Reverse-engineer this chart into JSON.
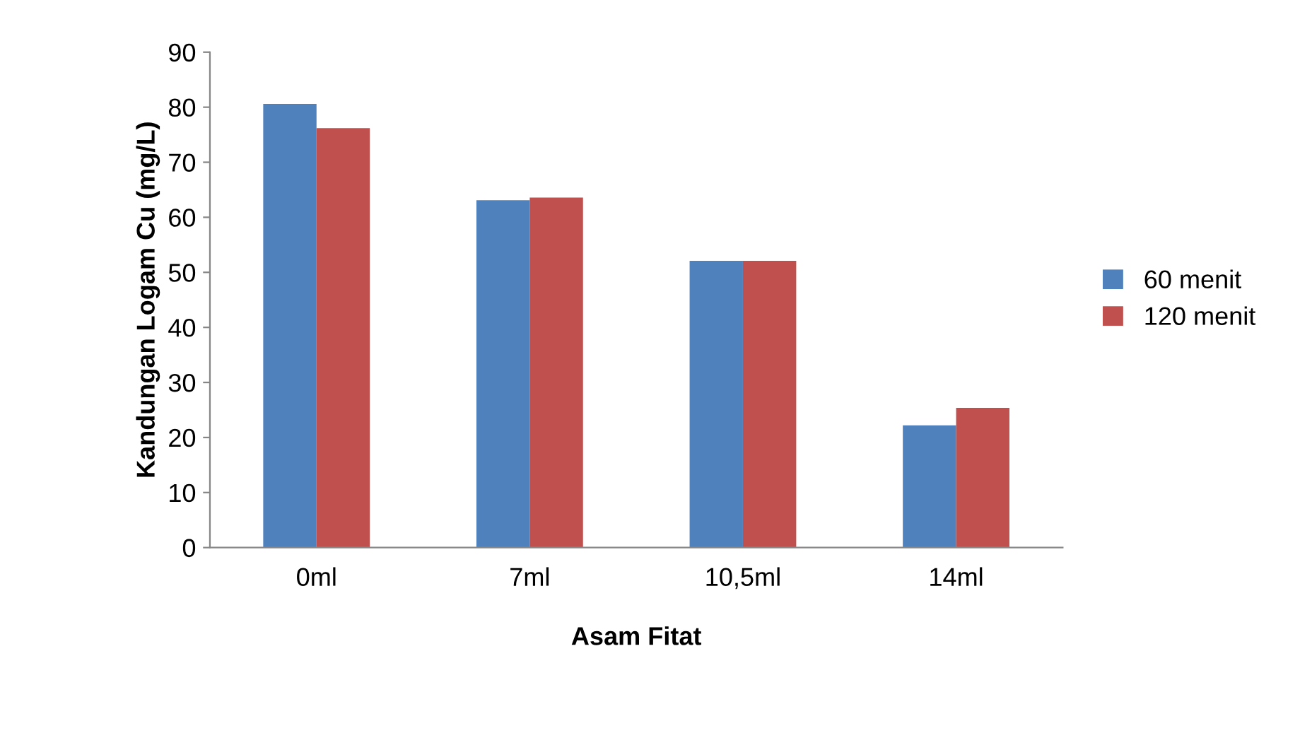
{
  "chart_data": {
    "type": "bar",
    "xlabel": "Asam Fitat",
    "ylabel": "Kandungan Logam Cu (mg/L)",
    "categories": [
      "0ml",
      "7ml",
      "10,5ml",
      "14ml"
    ],
    "series": [
      {
        "name": "60 menit",
        "color": "#4f81bd",
        "values": [
          80.6,
          63.1,
          52.1,
          22.2
        ]
      },
      {
        "name": "120 menit",
        "color": "#c0504d",
        "values": [
          76.2,
          63.6,
          52.1,
          25.4
        ]
      }
    ],
    "ylim": [
      0,
      90
    ],
    "yticks": [
      0,
      10,
      20,
      30,
      40,
      50,
      60,
      70,
      80,
      90
    ],
    "grid": false,
    "legend": "right"
  }
}
